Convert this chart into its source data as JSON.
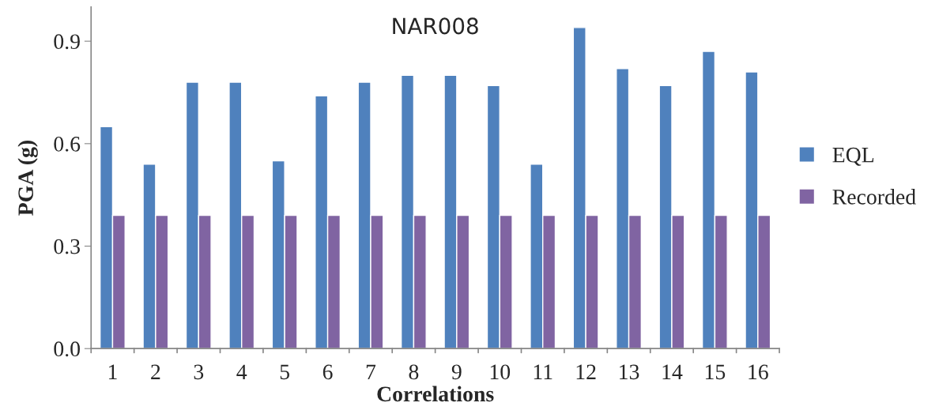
{
  "chart_data": {
    "type": "bar",
    "title": "NAR008",
    "xlabel": "Correlations",
    "ylabel": "PGA (g)",
    "categories": [
      "1",
      "2",
      "3",
      "4",
      "5",
      "6",
      "7",
      "8",
      "9",
      "10",
      "11",
      "12",
      "13",
      "14",
      "15",
      "16"
    ],
    "series": [
      {
        "name": "EQL",
        "color": "#4f81bd",
        "values": [
          0.65,
          0.54,
          0.78,
          0.78,
          0.55,
          0.74,
          0.78,
          0.8,
          0.8,
          0.77,
          0.54,
          0.94,
          0.82,
          0.77,
          0.87,
          0.81
        ]
      },
      {
        "name": "Recorded",
        "color": "#8064a2",
        "values": [
          0.39,
          0.39,
          0.39,
          0.39,
          0.39,
          0.39,
          0.39,
          0.39,
          0.39,
          0.39,
          0.39,
          0.39,
          0.39,
          0.39,
          0.39,
          0.39
        ]
      }
    ],
    "ylim": [
      0,
      1.0
    ],
    "yticks": [
      {
        "value": 0,
        "label": "0.0"
      },
      0.3,
      0.6,
      0.9
    ],
    "grid": false,
    "legend": "right"
  }
}
